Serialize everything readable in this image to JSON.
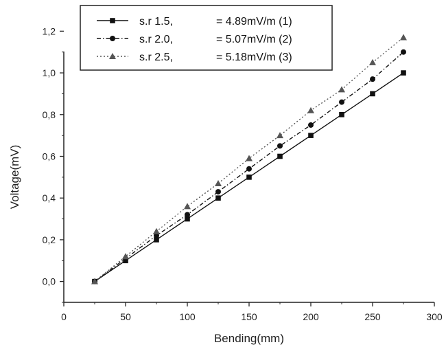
{
  "chart_data": {
    "type": "line",
    "title": "",
    "xlabel": "Bending(mm)",
    "ylabel": "Voltage(mV)",
    "xlim": [
      0,
      300
    ],
    "ylim": [
      -0.1,
      1.3
    ],
    "x_ticks": [
      "0",
      "50",
      "100",
      "150",
      "200",
      "250",
      "300"
    ],
    "y_ticks": [
      "0,0",
      "0,2",
      "0,4",
      "0,6",
      "0,8",
      "1,0",
      "1,2"
    ],
    "x_tick_values": [
      0,
      50,
      100,
      150,
      200,
      250,
      300
    ],
    "y_tick_values": [
      0,
      0.2,
      0.4,
      0.6,
      0.8,
      1.0,
      1.2
    ],
    "grid": false,
    "legend_position": "top-left",
    "x": [
      25,
      50,
      75,
      100,
      125,
      150,
      175,
      200,
      225,
      250,
      275
    ],
    "series": [
      {
        "name": "s.r 1.5,",
        "value_text": "= 4.89mV/m (1)",
        "marker": "square",
        "line_style": "solid",
        "color": "#111111",
        "values": [
          0.0,
          0.1,
          0.2,
          0.3,
          0.4,
          0.5,
          0.6,
          0.7,
          0.8,
          0.9,
          1.0
        ]
      },
      {
        "name": "s.r 2.0,",
        "value_text": "= 5.07mV/m (2)",
        "marker": "circle",
        "line_style": "dashdot",
        "color": "#111111",
        "values": [
          0.0,
          0.11,
          0.22,
          0.32,
          0.43,
          0.54,
          0.65,
          0.75,
          0.86,
          0.97,
          1.1
        ]
      },
      {
        "name": "s.r 2.5,",
        "value_text": "= 5.18mV/m (3)",
        "marker": "triangle",
        "line_style": "dotted",
        "color": "#555555",
        "values": [
          0.0,
          0.12,
          0.24,
          0.36,
          0.47,
          0.59,
          0.7,
          0.82,
          0.92,
          1.05,
          1.17
        ]
      }
    ]
  }
}
